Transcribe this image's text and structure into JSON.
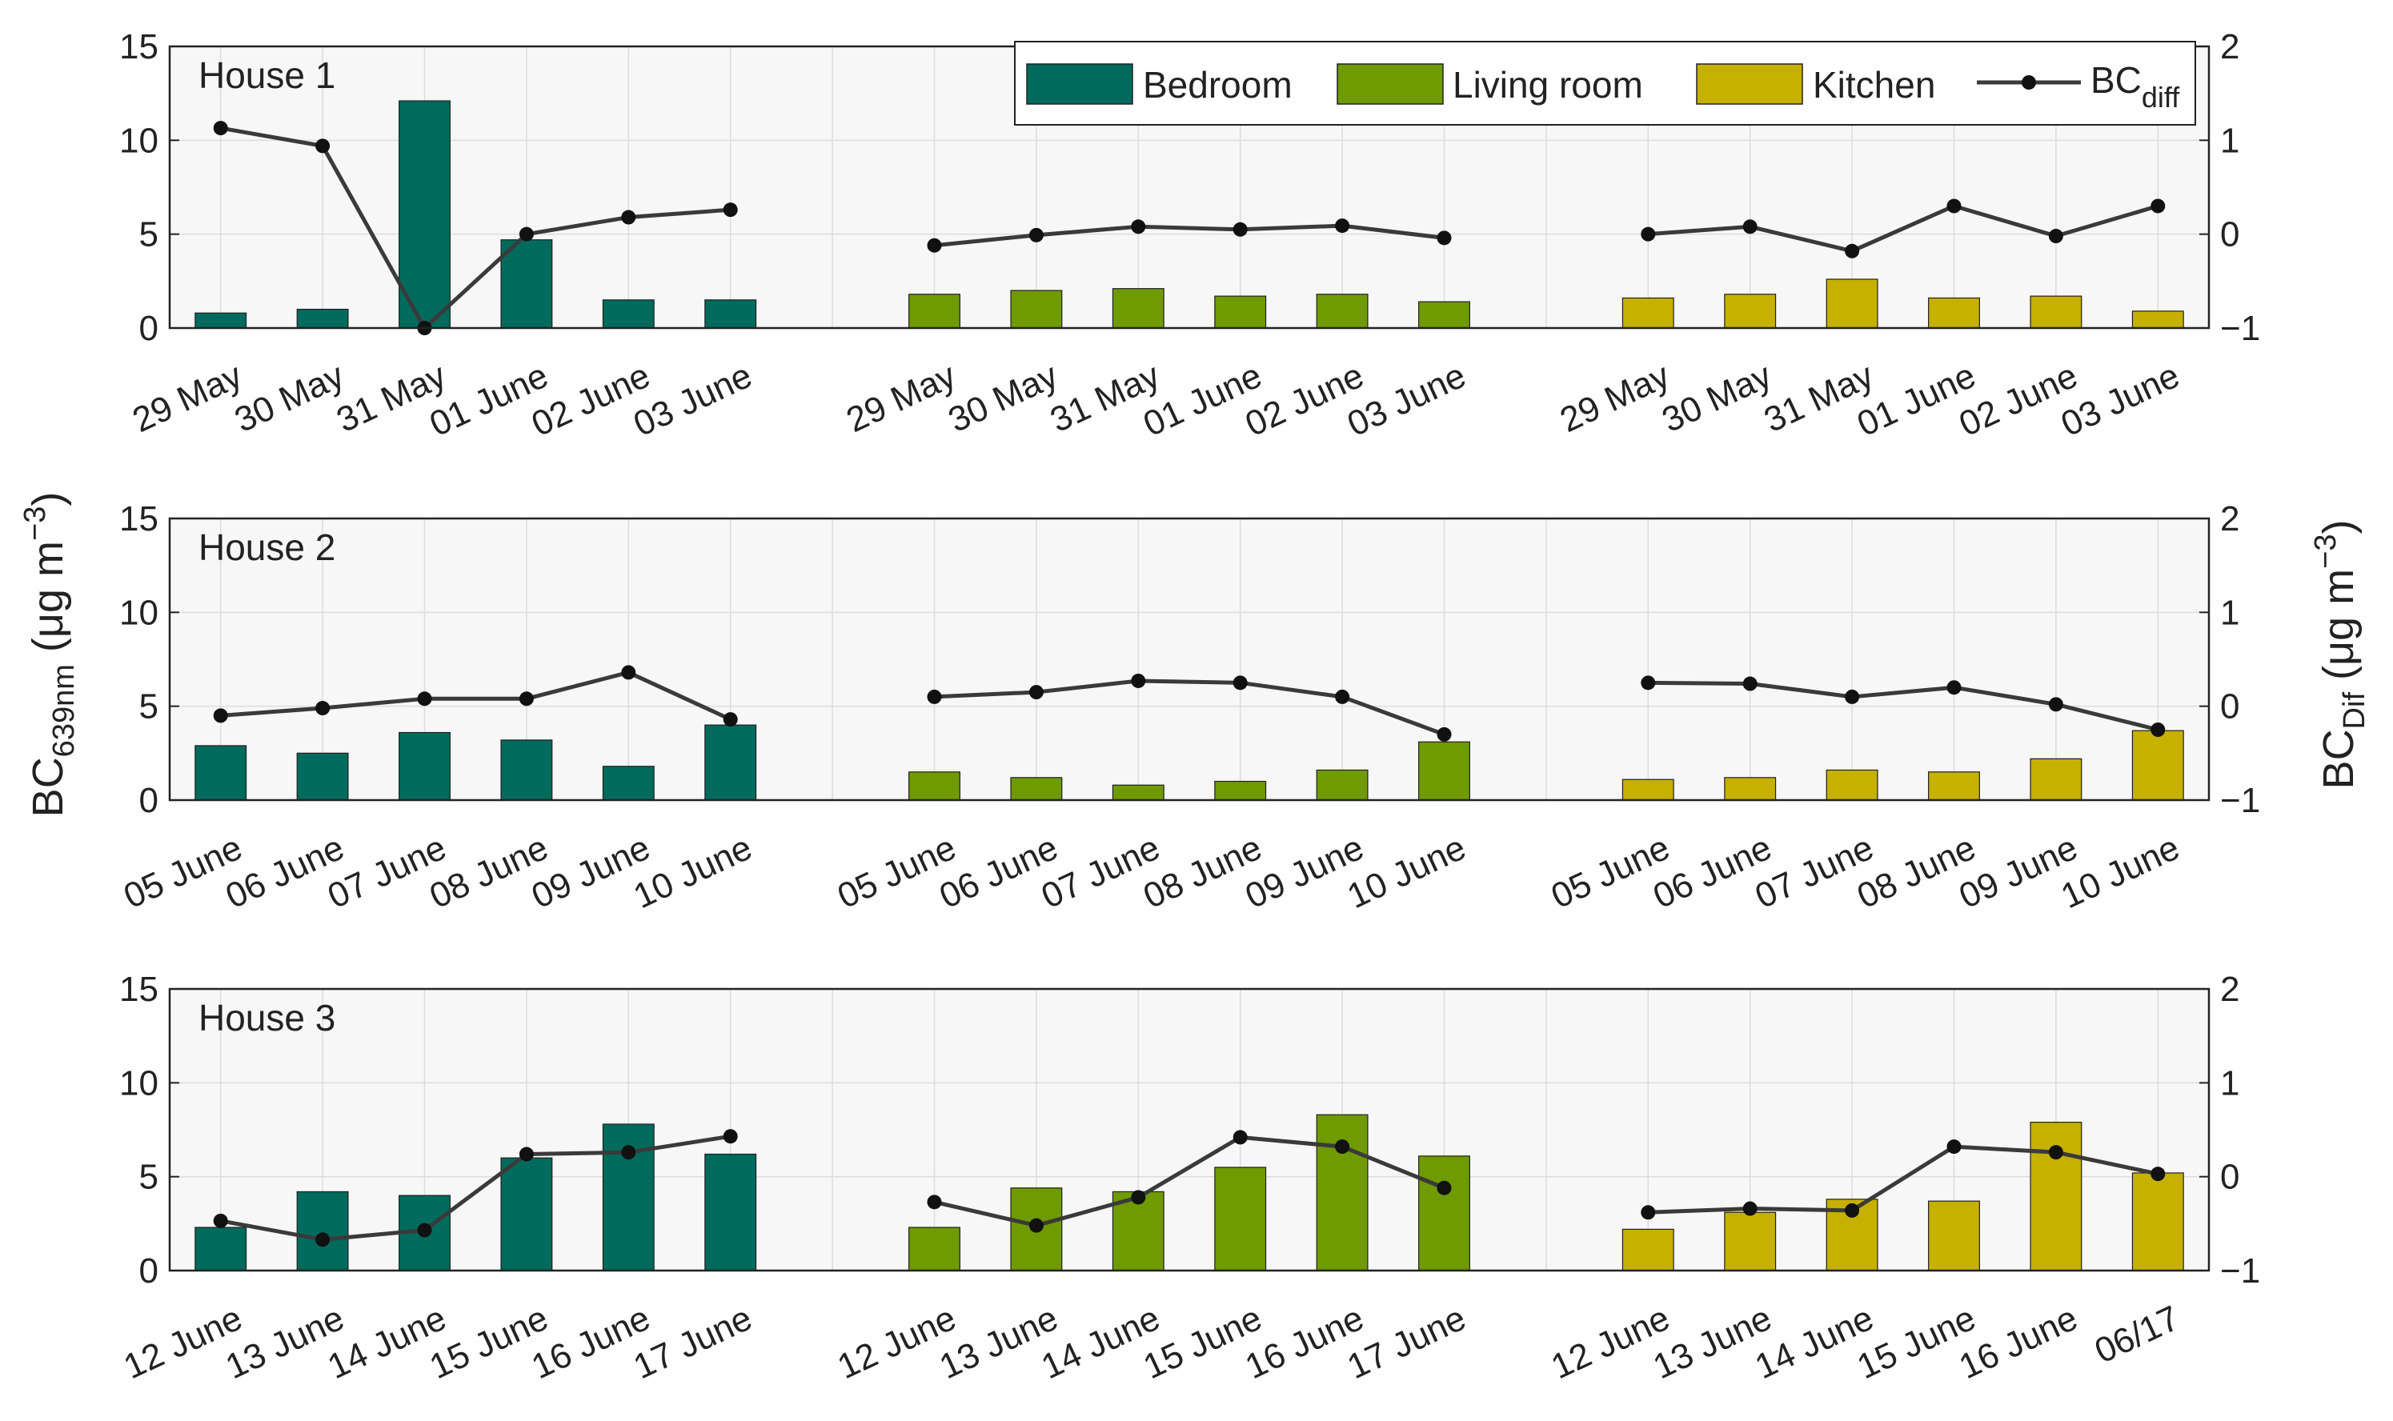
{
  "colors": {
    "bedroom": "#006b5c",
    "living_room": "#6f9a00",
    "kitchen": "#c6b000",
    "bc_diff_line": "#3a3a3a",
    "axes_background": "#f7f7f7",
    "grid": "#dcdcdc"
  },
  "y_axis_left": {
    "label_main": "BC",
    "label_sub": "639nm",
    "label_units": " (μg m",
    "label_sup": "−3",
    "label_close": ")"
  },
  "y_axis_right": {
    "label_main": "BC",
    "label_sub": "Dif",
    "label_units": " (μg m",
    "label_sup": "−3",
    "label_close": ")"
  },
  "legend": {
    "entries": [
      {
        "name": "Bedroom",
        "kind": "bar",
        "color_key": "bedroom"
      },
      {
        "name": "Living room",
        "kind": "bar",
        "color_key": "living_room"
      },
      {
        "name": "Kitchen",
        "kind": "bar",
        "color_key": "kitchen"
      },
      {
        "name_main": "BC",
        "name_sub": "diff",
        "kind": "line",
        "color_key": "bc_diff_line"
      }
    ]
  },
  "chart_data": [
    {
      "type": "bar+line",
      "title": "House 1",
      "ylim_left": [
        0,
        15
      ],
      "yticks_left": [
        "0",
        "5",
        "10",
        "15"
      ],
      "ytick_values_left": [
        0,
        5,
        10,
        15
      ],
      "ylim_right": [
        -1,
        2
      ],
      "yticks_right": [
        "−1",
        "0",
        "1",
        "2"
      ],
      "ytick_values_right": [
        -1,
        0,
        1,
        2
      ],
      "groups": [
        {
          "room": "bedroom",
          "categories": [
            "29 May",
            "30 May",
            "31 May",
            "01 June",
            "02 June",
            "03 June"
          ],
          "values": [
            0.8,
            1.0,
            12.1,
            4.7,
            1.5,
            1.5
          ],
          "bc_diff": [
            1.13,
            0.94,
            -1.0,
            0.0,
            0.18,
            0.26
          ]
        },
        {
          "room": "living_room",
          "categories": [
            "29 May",
            "30 May",
            "31 May",
            "01 June",
            "02 June",
            "03 June"
          ],
          "values": [
            1.8,
            2.0,
            2.1,
            1.7,
            1.8,
            1.4
          ],
          "bc_diff": [
            -0.12,
            -0.01,
            0.08,
            0.05,
            0.09,
            -0.04
          ]
        },
        {
          "room": "kitchen",
          "categories": [
            "29 May",
            "30 May",
            "31 May",
            "01 June",
            "02 June",
            "03 June"
          ],
          "values": [
            1.6,
            1.8,
            2.6,
            1.6,
            1.7,
            0.9
          ],
          "bc_diff": [
            0.0,
            0.08,
            -0.18,
            0.3,
            -0.02,
            0.3
          ]
        }
      ]
    },
    {
      "type": "bar+line",
      "title": "House 2",
      "ylim_left": [
        0,
        15
      ],
      "yticks_left": [
        "0",
        "5",
        "10",
        "15"
      ],
      "ytick_values_left": [
        0,
        5,
        10,
        15
      ],
      "ylim_right": [
        -1,
        2
      ],
      "yticks_right": [
        "−1",
        "0",
        "1",
        "2"
      ],
      "ytick_values_right": [
        -1,
        0,
        1,
        2
      ],
      "groups": [
        {
          "room": "bedroom",
          "categories": [
            "05 June",
            "06 June",
            "07 June",
            "08 June",
            "09 June",
            "10 June"
          ],
          "values": [
            2.9,
            2.5,
            3.6,
            3.2,
            1.8,
            4.0
          ],
          "bc_diff": [
            -0.1,
            -0.02,
            0.08,
            0.08,
            0.36,
            -0.14
          ]
        },
        {
          "room": "living_room",
          "categories": [
            "05 June",
            "06 June",
            "07 June",
            "08 June",
            "09 June",
            "10 June"
          ],
          "values": [
            1.5,
            1.2,
            0.8,
            1.0,
            1.6,
            3.1
          ],
          "bc_diff": [
            0.1,
            0.15,
            0.27,
            0.25,
            0.1,
            -0.3
          ]
        },
        {
          "room": "kitchen",
          "categories": [
            "05 June",
            "06 June",
            "07 June",
            "08 June",
            "09 June",
            "10 June"
          ],
          "values": [
            1.1,
            1.2,
            1.6,
            1.5,
            2.2,
            3.7
          ],
          "bc_diff": [
            0.25,
            0.24,
            0.1,
            0.2,
            0.02,
            -0.25
          ]
        }
      ]
    },
    {
      "type": "bar+line",
      "title": "House 3",
      "ylim_left": [
        0,
        15
      ],
      "yticks_left": [
        "0",
        "5",
        "10",
        "15"
      ],
      "ytick_values_left": [
        0,
        5,
        10,
        15
      ],
      "ylim_right": [
        -1,
        2
      ],
      "yticks_right": [
        "−1",
        "0",
        "1",
        "2"
      ],
      "ytick_values_right": [
        -1,
        0,
        1,
        2
      ],
      "groups": [
        {
          "room": "bedroom",
          "categories": [
            "12 June",
            "13 June",
            "14 June",
            "15 June",
            "16 June",
            "17 June"
          ],
          "values": [
            2.3,
            4.2,
            4.0,
            6.0,
            7.8,
            6.2
          ],
          "bc_diff": [
            -0.47,
            -0.67,
            -0.57,
            0.24,
            0.26,
            0.43
          ]
        },
        {
          "room": "living_room",
          "categories": [
            "12 June",
            "13 June",
            "14 June",
            "15 June",
            "16 June",
            "17 June"
          ],
          "values": [
            2.3,
            4.4,
            4.2,
            5.5,
            8.3,
            6.1
          ],
          "bc_diff": [
            -0.27,
            -0.52,
            -0.22,
            0.42,
            0.32,
            -0.12
          ]
        },
        {
          "room": "kitchen",
          "categories": [
            "12 June",
            "13 June",
            "14 June",
            "15 June",
            "16 June",
            "06/17"
          ],
          "values": [
            2.2,
            3.1,
            3.8,
            3.7,
            7.9,
            5.2
          ],
          "bc_diff": [
            -0.38,
            -0.34,
            -0.36,
            0.32,
            0.26,
            0.03
          ]
        }
      ]
    }
  ]
}
